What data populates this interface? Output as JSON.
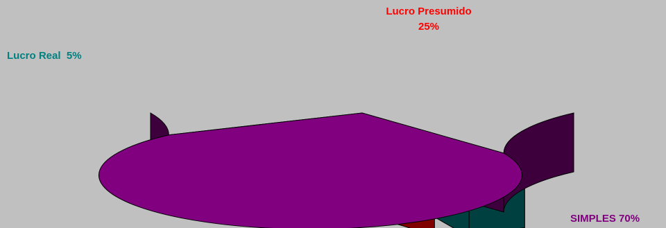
{
  "chart_data": {
    "type": "pie",
    "style": "3d-exploded",
    "slices": [
      {
        "label": "SIMPLES",
        "value": 70,
        "value_text": "70%",
        "color": "#800080",
        "side_color": "#3d003d",
        "exploded": false
      },
      {
        "label": "Lucro Real",
        "value": 5,
        "value_text": "5%",
        "color": "#008080",
        "side_color": "#004040",
        "exploded": true
      },
      {
        "label": "Lucro Presumido",
        "value": 25,
        "value_text": "25%",
        "color": "#ff0000",
        "side_color": "#800000",
        "exploded": true
      }
    ],
    "data_labels": [
      {
        "slice": "SIMPLES",
        "text": "SIMPLES 70%",
        "color": "#800080"
      },
      {
        "slice": "Lucro Real",
        "text": "Lucro Real  5%",
        "color": "#008080"
      },
      {
        "slice": "Lucro Presumido",
        "text": "Lucro Presumido",
        "text2": "25%",
        "color": "#ff0000"
      }
    ],
    "background_color": "#c0c0c0",
    "legend": "none"
  }
}
